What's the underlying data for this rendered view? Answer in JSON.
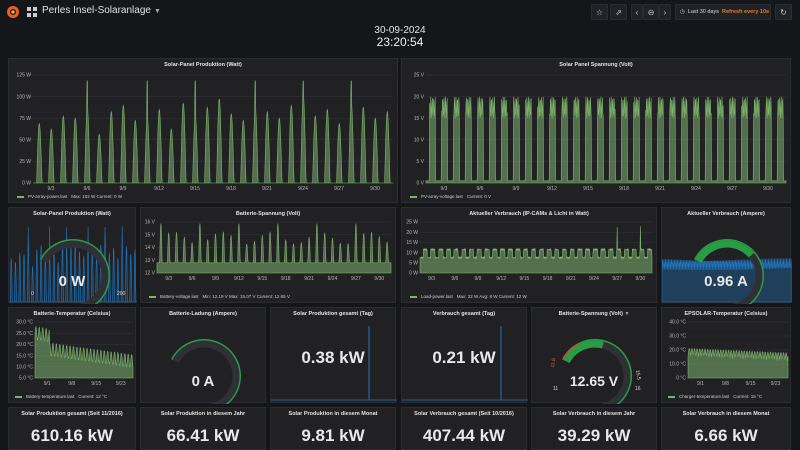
{
  "header": {
    "title": "Perles Insel-Solaranlage",
    "time_range": "Last 30 days",
    "refresh": "Refresh every 10s",
    "icons": [
      "grafana-logo",
      "dashboard-grid-icon",
      "star-icon",
      "share-icon",
      "chevron-left-icon",
      "zoom-out-icon",
      "chevron-right-icon",
      "clock-icon",
      "refresh-icon"
    ]
  },
  "clock": {
    "date": "30-09-2024",
    "time": "23:20:54"
  },
  "colors": {
    "green": "#7eb26d",
    "blue": "#1f78c1",
    "orange": "#eb7b18",
    "gauge_green": "#299c46",
    "gauge_red": "#d44a3a",
    "gauge_orange": "#ed8128"
  },
  "panels": {
    "solar_power_chart": {
      "title": "Solar-Panel Produktion (Watt)",
      "y_ticks": [
        "125 W",
        "100 W",
        "75 W",
        "50 W",
        "25 W",
        "0 W"
      ],
      "x_ticks": [
        "9/3",
        "9/6",
        "9/9",
        "9/12",
        "9/15",
        "9/18",
        "9/21",
        "9/24",
        "9/27",
        "9/30"
      ],
      "legend": {
        "name": "PV-array-power.last",
        "stats": "Max: 102 W   Current: 0 W"
      }
    },
    "solar_voltage_chart": {
      "title": "Solar Panel Spannung (Volt)",
      "y_ticks": [
        "25 V",
        "20 V",
        "15 V",
        "10 V",
        "5 V",
        "0 V"
      ],
      "x_ticks": [
        "9/3",
        "9/6",
        "9/9",
        "9/12",
        "9/15",
        "9/18",
        "9/21",
        "9/24",
        "9/27",
        "9/30"
      ],
      "legend": {
        "name": "PV-array-voltage.last",
        "stats": "Current: 0 V"
      }
    },
    "solar_power_gauge": {
      "title": "Solar-Panel Produktion (Watt)",
      "value": "0 W",
      "min_label": "0",
      "max_label": "200",
      "fraction": 0.0
    },
    "battery_voltage_chart": {
      "title": "Batterie-Spannung (Volt)",
      "y_ticks": [
        "16 V",
        "15 V",
        "14 V",
        "13 V",
        "12 V"
      ],
      "x_ticks": [
        "9/3",
        "9/6",
        "9/9",
        "9/12",
        "9/15",
        "9/18",
        "9/21",
        "9/24",
        "9/27",
        "9/30"
      ],
      "legend": {
        "name": "Battery-voltage.last",
        "stats": "Min: 12.19 V   Max: 15.07 V   Current: 12.65 V"
      }
    },
    "load_chart": {
      "title": "Aktueller Verbrauch (IP-CAMs & Licht in Watt)",
      "y_ticks": [
        "25 W",
        "20 W",
        "15 W",
        "10 W",
        "5 W",
        "0 W"
      ],
      "x_ticks": [
        "9/3",
        "9/6",
        "9/9",
        "9/12",
        "9/15",
        "9/18",
        "9/21",
        "9/24",
        "9/27",
        "9/30"
      ],
      "legend": {
        "name": "Load-power.last",
        "stats": "Max: 22 W   Avg: 8 W   Current: 12 W"
      }
    },
    "load_current_gauge": {
      "title": "Aktueller Verbrauch (Ampere)",
      "value": "0.96 A",
      "fraction": 0.48
    },
    "battery_temp_chart": {
      "title": "Batterie-Temperatur (Celsius)",
      "y_ticks": [
        "30.0 °C",
        "25.0 °C",
        "20.0 °C",
        "15.0 °C",
        "10.0 °C",
        "5.0 °C"
      ],
      "x_ticks": [
        "9/1",
        "9/8",
        "9/15",
        "9/23"
      ],
      "legend": {
        "name": "Battery-temperature.last",
        "stats": "Current: 12 °C"
      }
    },
    "battery_charge_gauge": {
      "title": "Batterie-Ladung (Ampere)",
      "value": "0 A",
      "fraction": 0.0
    },
    "solar_day_stat": {
      "title": "Solar Produktion gesamt (Tag)",
      "value": "0.38 kW"
    },
    "usage_day_stat": {
      "title": "Verbrauch gesamt (Tag)",
      "value": "0.21 kW"
    },
    "battery_voltage_gauge": {
      "title": "Batterie-Spannung (Volt)",
      "value": "12.65 V",
      "threshold_low": "11.8",
      "threshold_high": "15.5",
      "scale_min": "11",
      "scale_max": "16",
      "fraction": 0.33
    },
    "epsolar_temp_chart": {
      "title": "EPSOLAR-Temperatur (Celsius)",
      "y_ticks": [
        "40.0 °C",
        "30.0 °C",
        "20.0 °C",
        "10.0 °C",
        "0 °C"
      ],
      "x_ticks": [
        "9/1",
        "9/8",
        "9/15",
        "9/23"
      ],
      "legend": {
        "name": "Charger-temperature.last",
        "stats": "Current: 15 °C"
      }
    },
    "bottom_stats": [
      {
        "title": "Solar Produktion gesamt (Seit 11/2016)",
        "value": "610.16 kW"
      },
      {
        "title": "Solar Produktion in diesem Jahr",
        "value": "66.41 kW"
      },
      {
        "title": "Solar Produktion in diesem Monat",
        "value": "9.81 kW"
      },
      {
        "title": "Solar Verbrauch gesamt (Seit 10/2016)",
        "value": "407.44 kW"
      },
      {
        "title": "Solar Verbrauch in diesem Jahr",
        "value": "39.29 kW"
      },
      {
        "title": "Solar Verbrauch in diesem Monat",
        "value": "6.66 kW"
      }
    ]
  }
}
